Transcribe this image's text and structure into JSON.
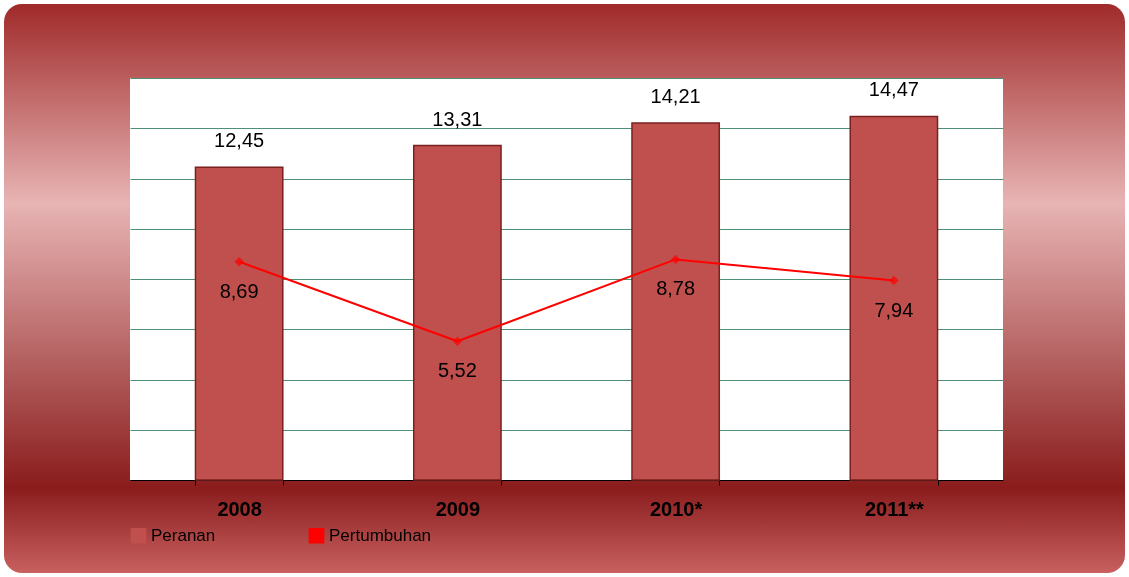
{
  "chart_data": {
    "type": "bar",
    "categories": [
      "2008",
      "2009",
      "2010*",
      "2011**"
    ],
    "series": [
      {
        "name": "Peranan",
        "color": "#c0504d",
        "values": [
          12.45,
          13.31,
          14.21,
          14.47
        ],
        "value_labels": [
          "12,45",
          "13,31",
          "14,21",
          "14,47"
        ]
      },
      {
        "name": "Pertumbuhan",
        "type": "line",
        "color": "#ff0000",
        "values": [
          8.69,
          5.52,
          8.78,
          7.94
        ],
        "value_labels": [
          "8,69",
          "5,52",
          "8,78",
          "7,94"
        ]
      }
    ],
    "ylim": [
      0,
      16
    ],
    "yticks": [
      {
        "value": 0,
        "label": null
      },
      {
        "value": 2,
        "label": null
      },
      {
        "value": 4,
        "label": null
      },
      {
        "value": 6,
        "label": null
      },
      {
        "value": 8,
        "label": null
      },
      {
        "value": 10,
        "label": null
      },
      {
        "value": 12,
        "label": null
      },
      {
        "value": 14,
        "label": null
      },
      {
        "value": 16,
        "label": null
      }
    ],
    "tick_labels": "x",
    "grid": "y",
    "legend": "bottom",
    "marker": "diamond",
    "line_style": "solid"
  }
}
